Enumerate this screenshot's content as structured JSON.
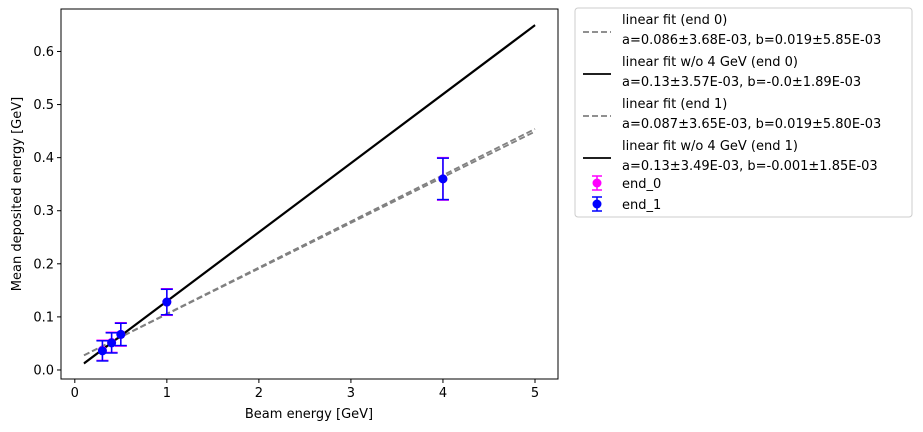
{
  "chart_data": {
    "type": "scatter",
    "xlabel": "Beam energy [GeV]",
    "ylabel": "Mean deposited energy [GeV]",
    "xlim": [
      -0.15,
      5.25
    ],
    "ylim": [
      -0.017,
      0.68
    ],
    "xticks": [
      0,
      1,
      2,
      3,
      4,
      5
    ],
    "xtick_labels": [
      "0",
      "1",
      "2",
      "3",
      "4",
      "5"
    ],
    "yticks": [
      0.0,
      0.1,
      0.2,
      0.3,
      0.4,
      0.5,
      0.6
    ],
    "ytick_labels": [
      "0.0",
      "0.1",
      "0.2",
      "0.3",
      "0.4",
      "0.5",
      "0.6"
    ],
    "grid": false,
    "legend_position": "outside-right",
    "fits": [
      {
        "name": "linear fit (end 0)",
        "params": " a=0.086±3.68E-03,  b=0.019±5.85E-03",
        "a": 0.086,
        "b": 0.019,
        "x_range": [
          0.1,
          5.0
        ],
        "color": "#808080",
        "style": "dashed"
      },
      {
        "name": "linear fit w/o 4 GeV (end 0)",
        "params": " a=0.13±3.57E-03,  b=-0.0±1.89E-03",
        "a": 0.13,
        "b": 0.0,
        "x_range": [
          0.1,
          5.0
        ],
        "color": "#000000",
        "style": "solid"
      },
      {
        "name": "linear fit (end 1)",
        "params": " a=0.087±3.65E-03,  b=0.019±5.80E-03",
        "a": 0.087,
        "b": 0.019,
        "x_range": [
          0.1,
          5.0
        ],
        "color": "#808080",
        "style": "dashed"
      },
      {
        "name": "linear fit w/o 4 GeV (end 1)",
        "params": " a=0.13±3.49E-03,  b=-0.001±1.85E-03",
        "a": 0.13,
        "b": -0.001,
        "x_range": [
          0.1,
          5.0
        ],
        "color": "#000000",
        "style": "solid"
      }
    ],
    "series": [
      {
        "name": "end_0",
        "color": "#ff00ff",
        "points": [
          {
            "x": 0.3,
            "y": 0.037,
            "err": 0.019
          },
          {
            "x": 0.4,
            "y": 0.052,
            "err": 0.019
          },
          {
            "x": 0.5,
            "y": 0.067,
            "err": 0.022
          },
          {
            "x": 1.0,
            "y": 0.128,
            "err": 0.025
          },
          {
            "x": 4.0,
            "y": 0.36,
            "err": 0.04
          }
        ]
      },
      {
        "name": "end_1",
        "color": "#0000ff",
        "points": [
          {
            "x": 0.3,
            "y": 0.036,
            "err": 0.019
          },
          {
            "x": 0.4,
            "y": 0.051,
            "err": 0.019
          },
          {
            "x": 0.5,
            "y": 0.067,
            "err": 0.021
          },
          {
            "x": 1.0,
            "y": 0.128,
            "err": 0.024
          },
          {
            "x": 4.0,
            "y": 0.36,
            "err": 0.039
          }
        ]
      }
    ]
  }
}
